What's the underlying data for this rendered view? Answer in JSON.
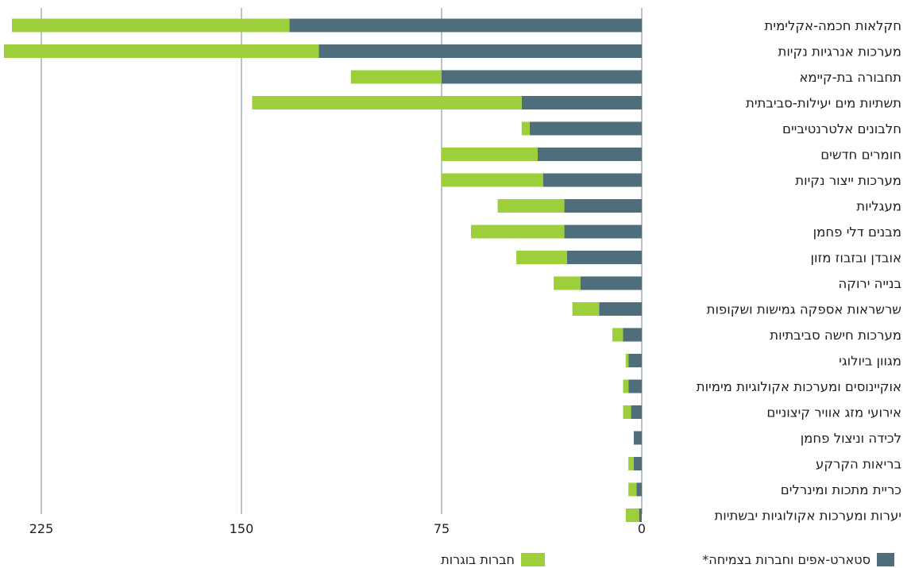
{
  "chart_data": {
    "type": "bar",
    "orientation": "horizontal",
    "stacked": true,
    "x_direction": "right-to-left",
    "categories": [
      "חקלאות חכמה-אקלימית",
      "מערכות אנרגיות נקיות",
      "תחבורה בת-קיימא",
      "תשתיות מים יעילות-סביבתית",
      "חלבונים אלטרנטיביים",
      "חומרים חדשים",
      "מערכות ייצור נקיות",
      "מעגליות",
      "מבנים דלי פחמן",
      "אובדן ובזבוז מזון",
      "בנייה ירוקה",
      "שרשראות אספקה גמישות ושקופות",
      "מערכות חישה סביבתיות",
      "מגוון ביולוגי",
      "אוקיינוסים ומערכות אקולוגיות מימיות",
      "אירועי מזג אוויר קיצוניים",
      "לכידה וניצול פחמן",
      "בריאות הקרקע",
      "כריית מתכות ומינרלים",
      "יערות ומערכות אקולוגיות יבשתיות"
    ],
    "series": [
      {
        "name": "סטארט-אפים וחברות בצמיחה*",
        "color": "#4e6e7b",
        "values": [
          132,
          121,
          75,
          45,
          42,
          39,
          37,
          29,
          29,
          28,
          23,
          16,
          7,
          5,
          5,
          4,
          3,
          3,
          2,
          1
        ]
      },
      {
        "name": "חברות בוגרות",
        "color": "#9ccf3a",
        "values": [
          104,
          118,
          34,
          101,
          3,
          36,
          38,
          25,
          35,
          19,
          10,
          10,
          4,
          1,
          2,
          3,
          0,
          2,
          3,
          5
        ]
      }
    ],
    "xticks": [
      0,
      75,
      150,
      225
    ],
    "xlim": [
      0,
      241
    ],
    "grid": true,
    "legend_position": "bottom"
  }
}
